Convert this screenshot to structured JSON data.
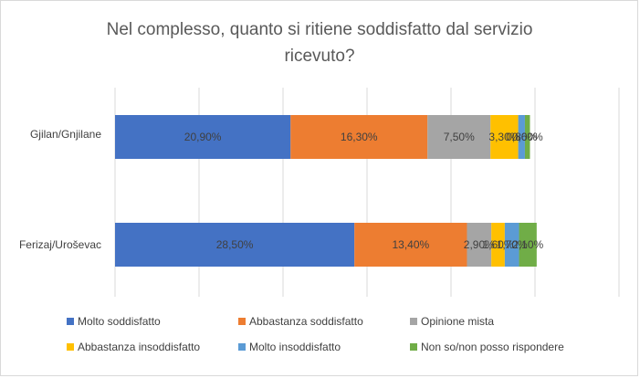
{
  "chart_data": {
    "type": "bar",
    "orientation": "horizontal",
    "stacked": true,
    "title_lines": [
      "Nel complesso, quanto si ritiene soddisfatto dal servizio",
      "ricevuto?"
    ],
    "categories": [
      "Gjilan/Gnjilane",
      "Ferizaj/Uroševac"
    ],
    "xlim": [
      0,
      60
    ],
    "grid": true,
    "legend_position": "bottom",
    "series": [
      {
        "name": "Molto soddisfatto",
        "color": "#4472C4",
        "values": [
          20.9,
          28.5
        ],
        "labels": [
          "20,90%",
          "28,50%"
        ]
      },
      {
        "name": "Abbastanza soddisfatto",
        "color": "#ED7D31",
        "values": [
          16.3,
          13.4
        ],
        "labels": [
          "16,30%",
          "13,40%"
        ]
      },
      {
        "name": "Opinione mista",
        "color": "#A5A5A5",
        "values": [
          7.5,
          2.9
        ],
        "labels": [
          "7,50%",
          "2,90%"
        ]
      },
      {
        "name": "Abbastanza insoddisfatto",
        "color": "#FFC000",
        "values": [
          3.3,
          1.6
        ],
        "labels": [
          "3,30%",
          "1,60%"
        ]
      },
      {
        "name": "Molto insoddisfatto",
        "color": "#5B9BD5",
        "values": [
          0.8,
          1.7
        ],
        "labels": [
          "0,80%",
          "1,70%"
        ]
      },
      {
        "name": "Non so/non posso rispondere",
        "color": "#70AD47",
        "values": [
          0.6,
          2.1
        ],
        "labels": [
          "0,60%",
          "2,10%"
        ]
      }
    ]
  }
}
